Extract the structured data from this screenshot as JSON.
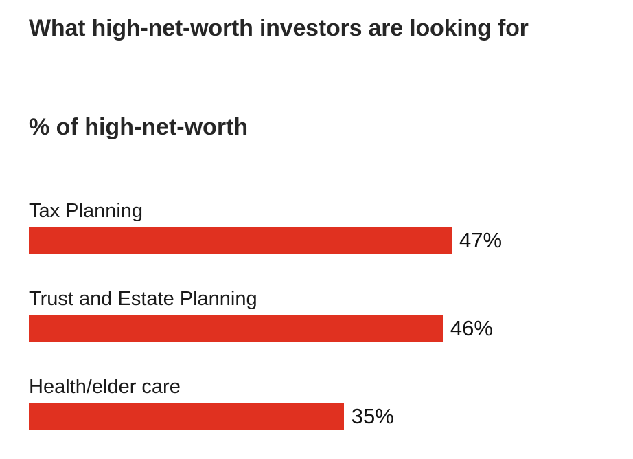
{
  "chart_data": {
    "type": "bar",
    "orientation": "horizontal",
    "title": "What high-net-worth investors are looking for",
    "subtitle": "% of high-net-worth",
    "categories": [
      "Tax Planning",
      "Trust and Estate Planning",
      "Health/elder care"
    ],
    "values": [
      47,
      46,
      35
    ],
    "value_labels": [
      "47%",
      "46%",
      "35%"
    ],
    "xlim": [
      0,
      100
    ],
    "grid": false,
    "legend": "none",
    "bar_color": "#e03120"
  }
}
